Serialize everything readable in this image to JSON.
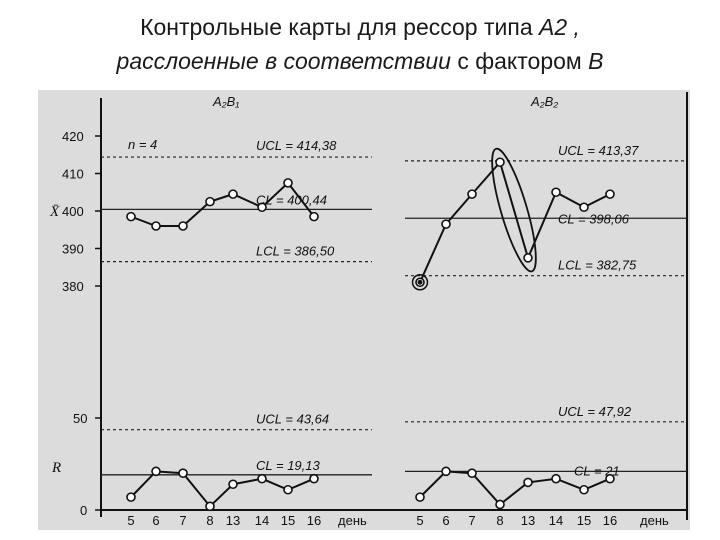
{
  "slide": {
    "title_line1_a": "Контрольные карты для рессор типа ",
    "title_line1_b": "A2 ,",
    "title_line2_a": "расслоенные в соответствии",
    "title_line2_b": " с фактором ",
    "title_line2_c": "B"
  },
  "chart_data": {
    "type": "line",
    "xlabel": "день",
    "x_ticks": [
      "5",
      "6",
      "7",
      "8",
      "13",
      "14",
      "15",
      "16"
    ],
    "x_axis_label": "день",
    "panels": [
      {
        "name": "A₂B₁",
        "note": "n = 4",
        "xbar": {
          "ylabel": "X̄",
          "yticks": [
            380,
            390,
            400,
            410,
            420
          ],
          "ylim": [
            376,
            423
          ],
          "values": [
            398.5,
            396,
            396,
            402.5,
            404.5,
            401,
            407.5,
            398.5
          ],
          "UCL": 414.38,
          "CL": 400.44,
          "LCL": 386.5,
          "ucl_label": "UCL = 414,38",
          "cl_label": "CL = 400,44",
          "lcl_label": "LCL = 386,50"
        },
        "range": {
          "ylabel": "R",
          "yticks": [
            0,
            50
          ],
          "ylim": [
            0,
            62
          ],
          "values": [
            7,
            21,
            20,
            2,
            14,
            17,
            11,
            17
          ],
          "UCL": 43.64,
          "CL": 19.13,
          "ucl_label": "UCL = 43,64",
          "cl_label": "CL = 19,13"
        }
      },
      {
        "name": "A₂B₂",
        "xbar": {
          "values": [
            381,
            396.5,
            404.5,
            413,
            387.5,
            405,
            401,
            404.5
          ],
          "UCL": 413.37,
          "CL": 398.06,
          "LCL": 382.75,
          "ucl_label": "UCL = 413,37",
          "cl_label": "CL = 398,06",
          "lcl_label": "LCL = 382,75"
        },
        "range": {
          "values": [
            7,
            21,
            20,
            3,
            15,
            17,
            11,
            17
          ],
          "UCL": 47.92,
          "CL": 21,
          "ucl_label": "UCL = 47,92",
          "cl_label": "CL = 21"
        }
      }
    ]
  }
}
